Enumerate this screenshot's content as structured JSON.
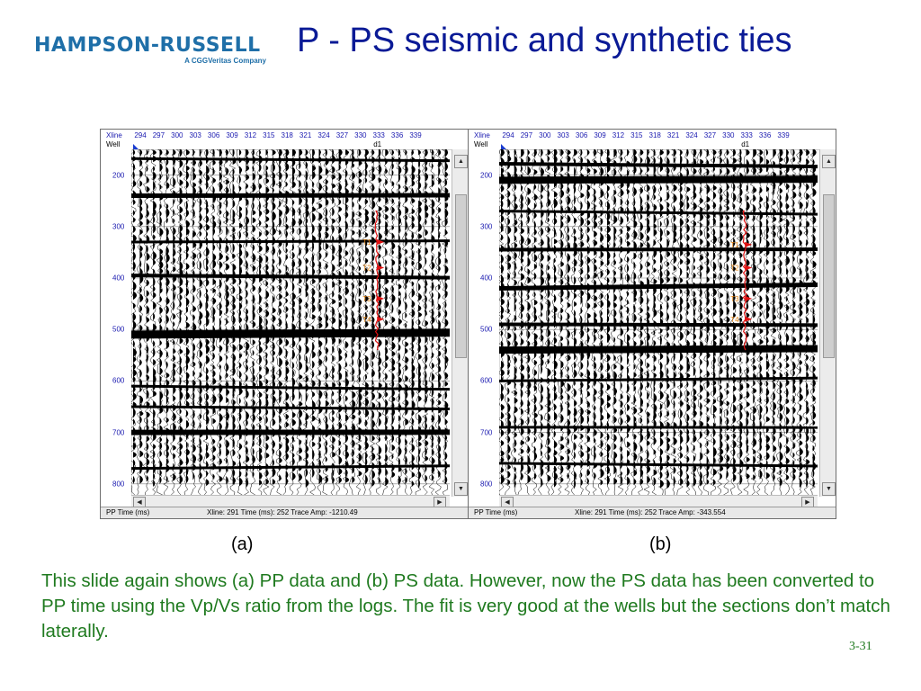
{
  "logo": {
    "text": "HAMPSON-RUSSELL",
    "subtitle": "A CGGVeritas Company"
  },
  "title": "P - PS seismic and synthetic ties",
  "panels": [
    {
      "id": "a",
      "xline_label": "Xline",
      "well_label": "Well",
      "well_name": "d1",
      "xlines": [
        "294",
        "297",
        "300",
        "303",
        "306",
        "309",
        "312",
        "315",
        "318",
        "321",
        "324",
        "327",
        "330",
        "333",
        "336",
        "339"
      ],
      "time_ticks": [
        "200",
        "300",
        "400",
        "500",
        "600",
        "700",
        "800"
      ],
      "horizon_labels": [
        "T1",
        "T2",
        "T3",
        "T4"
      ],
      "status_left": "PP Time (ms)",
      "status_right": "Xline: 291  Time (ms): 252  Trace Amp: -1210.49"
    },
    {
      "id": "b",
      "xline_label": "Xline",
      "well_label": "Well",
      "well_name": "d1",
      "xlines": [
        "294",
        "297",
        "300",
        "303",
        "306",
        "309",
        "312",
        "315",
        "318",
        "321",
        "324",
        "327",
        "330",
        "333",
        "336",
        "339"
      ],
      "time_ticks": [
        "200",
        "300",
        "400",
        "500",
        "600",
        "700",
        "800"
      ],
      "horizon_labels": [
        "T1",
        "T2",
        "T3",
        "T4"
      ],
      "status_left": "PP Time (ms)",
      "status_right": "Xline: 291  Time (ms): 252  Trace Amp: -343.554"
    }
  ],
  "captions": {
    "a": "(a)",
    "b": "(b)"
  },
  "description": "This slide again shows (a) PP data and (b) PS data.  However, now the PS data has been converted to PP time using the Vp/Vs ratio from the logs.  The fit is very good at the wells but the sections don’t match laterally.",
  "page_number": "3-31",
  "colors": {
    "title": "#0a1a96",
    "text": "#1f7a1f",
    "logo": "#1f6fa8",
    "well_curve": "#e01010",
    "axis_labels": "#1a1ab0"
  },
  "icons": [
    "scroll-up-icon",
    "scroll-down-icon",
    "scroll-left-icon",
    "scroll-right-icon",
    "well-marker-icon"
  ]
}
